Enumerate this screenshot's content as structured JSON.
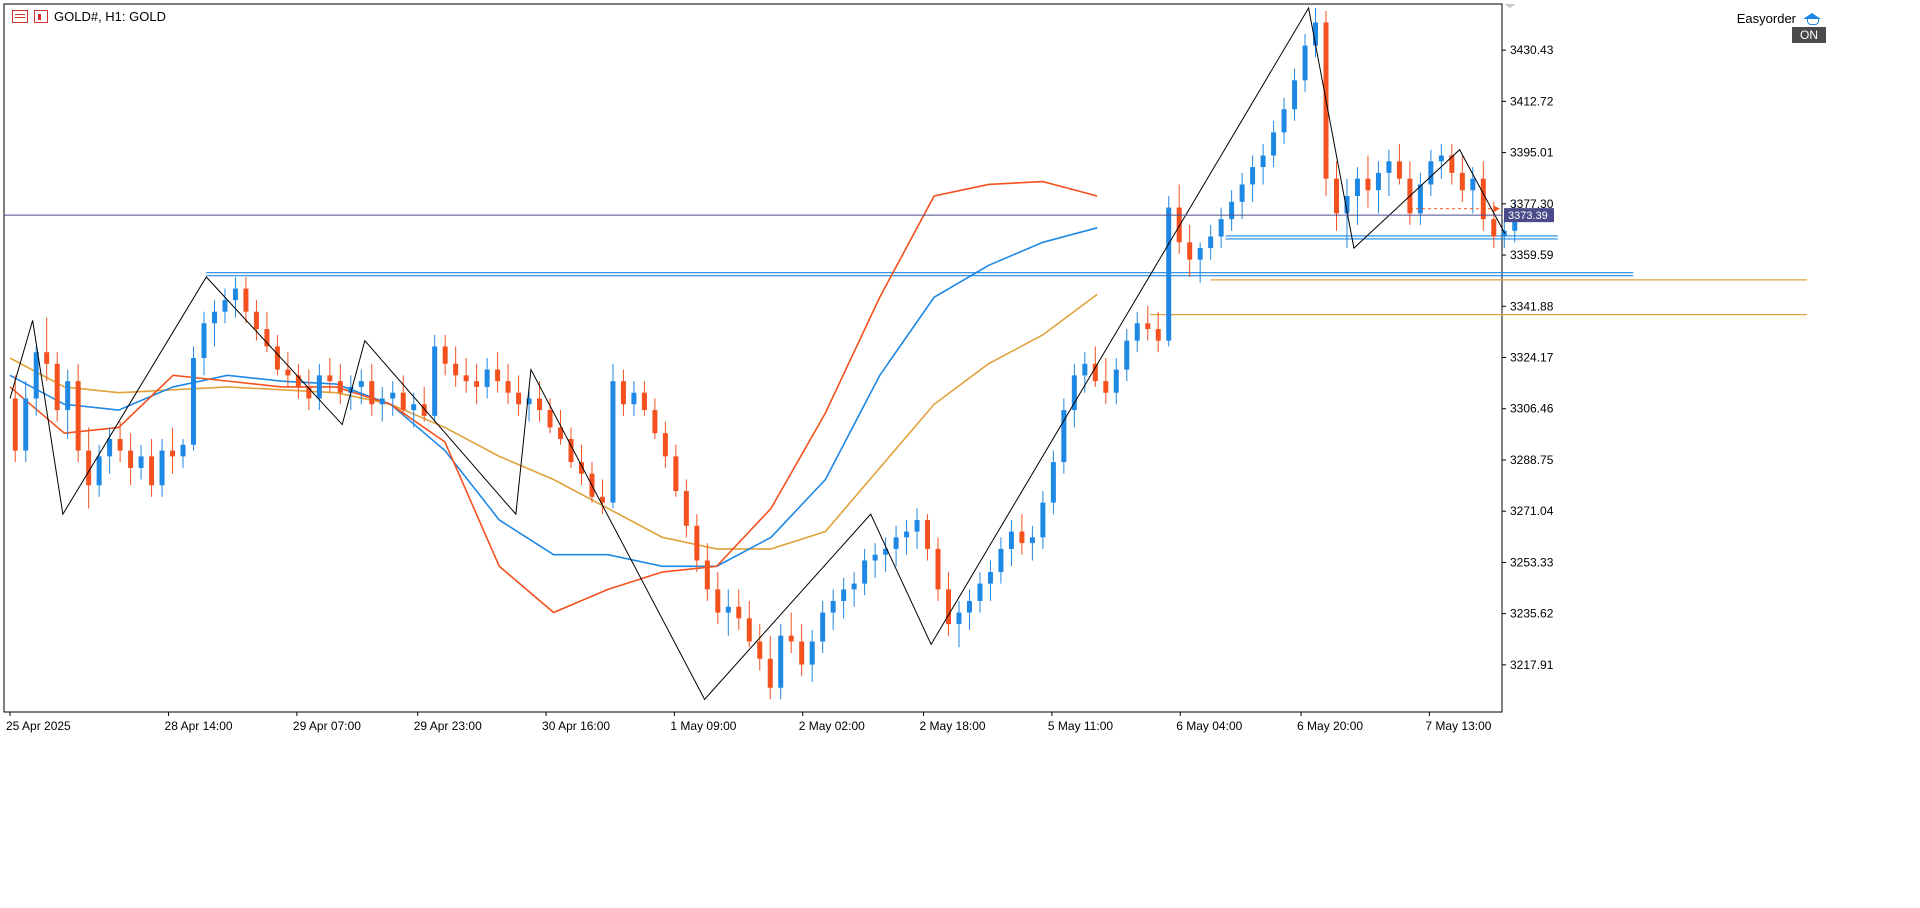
{
  "header": {
    "symbol": "GOLD#, H1:  GOLD",
    "expert_name": "Easyorder",
    "expert_status": "ON"
  },
  "chart_data": {
    "type": "candlestick",
    "symbol": "GOLD#",
    "timeframe": "H1",
    "y_axis": {
      "range": [
        3203,
        3445
      ],
      "ticks": [
        "3430.43",
        "3412.72",
        "3395.01",
        "3377.30",
        "3359.59",
        "3341.88",
        "3324.17",
        "3306.46",
        "3288.75",
        "3271.04",
        "3253.33",
        "3235.62",
        "3217.91"
      ]
    },
    "x_axis": {
      "ticks": [
        {
          "label": "25 Apr 2025",
          "bar": 0
        },
        {
          "label": "28 Apr 14:00",
          "bar": 21
        },
        {
          "label": "29 Apr 07:00",
          "bar": 38
        },
        {
          "label": "29 Apr 23:00",
          "bar": 54
        },
        {
          "label": "30 Apr 16:00",
          "bar": 71
        },
        {
          "label": "1 May 09:00",
          "bar": 88
        },
        {
          "label": "2 May 02:00",
          "bar": 105
        },
        {
          "label": "2 May 18:00",
          "bar": 121
        },
        {
          "label": "5 May 11:00",
          "bar": 138
        },
        {
          "label": "6 May 04:00",
          "bar": 155
        },
        {
          "label": "6 May 20:00",
          "bar": 171
        },
        {
          "label": "7 May 13:00",
          "bar": 188
        }
      ]
    },
    "bid": {
      "price": 3373.39,
      "label": "3373.39"
    },
    "ask_price": 3375.6,
    "colors": {
      "up": "#1e88e5",
      "down": "#f4511e",
      "ma_fast": "#f4511e",
      "ma_mid": "#1e88e5",
      "ma_slow": "#e0a23a",
      "zigzag": "#000000",
      "bid": "#4a4a8a"
    },
    "zigzag": [
      [
        0,
        3310
      ],
      [
        3,
        3337
      ],
      [
        7,
        3270
      ],
      [
        26,
        3352
      ],
      [
        44,
        3301
      ],
      [
        47,
        3330
      ],
      [
        67,
        3270
      ],
      [
        69,
        3320
      ],
      [
        92,
        3206
      ],
      [
        114,
        3270
      ],
      [
        122,
        3225
      ],
      [
        172,
        3445
      ],
      [
        178,
        3362
      ],
      [
        192,
        3396
      ],
      [
        198,
        3367
      ]
    ],
    "levels": [
      {
        "bar_start": 26,
        "bar_end": 215,
        "price": 3353.5,
        "color": "#1e88e5",
        "double": true
      },
      {
        "bar_start": 161,
        "bar_end": 205,
        "price": 3366.2,
        "color": "#1e88e5",
        "double": true
      },
      {
        "bar_start": 159,
        "bar_end": 238,
        "price": 3351.0,
        "color": "#e0a23a",
        "double": false
      },
      {
        "bar_start": 151,
        "bar_end": 238,
        "price": 3339.0,
        "color": "#e0a23a",
        "double": false
      }
    ],
    "ma_fast": [
      [
        0,
        3314
      ],
      [
        10,
        3298
      ],
      [
        20,
        3300
      ],
      [
        30,
        3318
      ],
      [
        40,
        3316
      ],
      [
        50,
        3314
      ],
      [
        60,
        3314
      ],
      [
        70,
        3308
      ],
      [
        80,
        3295
      ],
      [
        90,
        3252
      ],
      [
        100,
        3236
      ],
      [
        110,
        3244
      ],
      [
        120,
        3250
      ],
      [
        130,
        3252
      ],
      [
        140,
        3272
      ],
      [
        150,
        3305
      ],
      [
        160,
        3345
      ],
      [
        170,
        3380
      ],
      [
        180,
        3384
      ],
      [
        190,
        3385
      ],
      [
        200,
        3380
      ]
    ],
    "ma_mid": [
      [
        0,
        3318
      ],
      [
        10,
        3308
      ],
      [
        20,
        3306
      ],
      [
        30,
        3314
      ],
      [
        40,
        3318
      ],
      [
        50,
        3316
      ],
      [
        60,
        3315
      ],
      [
        70,
        3308
      ],
      [
        80,
        3292
      ],
      [
        90,
        3268
      ],
      [
        100,
        3256
      ],
      [
        110,
        3256
      ],
      [
        120,
        3252
      ],
      [
        130,
        3252
      ],
      [
        140,
        3262
      ],
      [
        150,
        3282
      ],
      [
        160,
        3318
      ],
      [
        170,
        3345
      ],
      [
        180,
        3356
      ],
      [
        190,
        3364
      ],
      [
        200,
        3369
      ]
    ],
    "ma_slow": [
      [
        0,
        3324
      ],
      [
        10,
        3314
      ],
      [
        20,
        3312
      ],
      [
        30,
        3313
      ],
      [
        40,
        3314
      ],
      [
        50,
        3313
      ],
      [
        60,
        3312
      ],
      [
        70,
        3308
      ],
      [
        80,
        3300
      ],
      [
        90,
        3290
      ],
      [
        100,
        3282
      ],
      [
        110,
        3272
      ],
      [
        120,
        3262
      ],
      [
        130,
        3258
      ],
      [
        140,
        3258
      ],
      [
        150,
        3264
      ],
      [
        160,
        3286
      ],
      [
        170,
        3308
      ],
      [
        180,
        3322
      ],
      [
        190,
        3332
      ],
      [
        200,
        3346
      ]
    ],
    "candles": [
      [
        3310,
        3318,
        3288,
        3292
      ],
      [
        3292,
        3316,
        3288,
        3310
      ],
      [
        3310,
        3328,
        3304,
        3326
      ],
      [
        3326,
        3338,
        3316,
        3322
      ],
      [
        3322,
        3326,
        3302,
        3306
      ],
      [
        3306,
        3320,
        3296,
        3316
      ],
      [
        3316,
        3322,
        3288,
        3292
      ],
      [
        3292,
        3300,
        3272,
        3280
      ],
      [
        3280,
        3294,
        3276,
        3290
      ],
      [
        3290,
        3300,
        3284,
        3296
      ],
      [
        3296,
        3302,
        3288,
        3292
      ],
      [
        3292,
        3298,
        3280,
        3286
      ],
      [
        3286,
        3294,
        3282,
        3290
      ],
      [
        3290,
        3296,
        3276,
        3280
      ],
      [
        3280,
        3296,
        3276,
        3292
      ],
      [
        3292,
        3300,
        3284,
        3290
      ],
      [
        3290,
        3296,
        3286,
        3294
      ],
      [
        3294,
        3328,
        3292,
        3324
      ],
      [
        3324,
        3340,
        3318,
        3336
      ],
      [
        3336,
        3344,
        3328,
        3340
      ],
      [
        3340,
        3348,
        3336,
        3344
      ],
      [
        3344,
        3352,
        3338,
        3348
      ],
      [
        3348,
        3352,
        3336,
        3340
      ],
      [
        3340,
        3344,
        3330,
        3334
      ],
      [
        3334,
        3340,
        3326,
        3328
      ],
      [
        3328,
        3332,
        3318,
        3320
      ],
      [
        3320,
        3326,
        3314,
        3318
      ],
      [
        3318,
        3322,
        3310,
        3314
      ],
      [
        3314,
        3320,
        3306,
        3310
      ],
      [
        3310,
        3322,
        3306,
        3318
      ],
      [
        3318,
        3324,
        3312,
        3316
      ],
      [
        3316,
        3322,
        3308,
        3312
      ],
      [
        3312,
        3318,
        3306,
        3314
      ],
      [
        3314,
        3320,
        3308,
        3316
      ],
      [
        3316,
        3322,
        3304,
        3308
      ],
      [
        3308,
        3314,
        3302,
        3310
      ],
      [
        3310,
        3316,
        3304,
        3312
      ],
      [
        3312,
        3318,
        3304,
        3306
      ],
      [
        3306,
        3312,
        3300,
        3308
      ],
      [
        3308,
        3314,
        3302,
        3304
      ],
      [
        3304,
        3332,
        3302,
        3328
      ],
      [
        3328,
        3332,
        3318,
        3322
      ],
      [
        3322,
        3328,
        3314,
        3318
      ],
      [
        3318,
        3324,
        3312,
        3316
      ],
      [
        3316,
        3322,
        3308,
        3314
      ],
      [
        3314,
        3324,
        3310,
        3320
      ],
      [
        3320,
        3326,
        3312,
        3316
      ],
      [
        3316,
        3322,
        3308,
        3312
      ],
      [
        3312,
        3318,
        3304,
        3308
      ],
      [
        3308,
        3314,
        3302,
        3310
      ],
      [
        3310,
        3316,
        3302,
        3306
      ],
      [
        3306,
        3310,
        3298,
        3300
      ],
      [
        3300,
        3306,
        3294,
        3296
      ],
      [
        3296,
        3300,
        3286,
        3288
      ],
      [
        3288,
        3294,
        3280,
        3284
      ],
      [
        3284,
        3288,
        3274,
        3276
      ],
      [
        3276,
        3282,
        3270,
        3274
      ],
      [
        3274,
        3322,
        3272,
        3316
      ],
      [
        3316,
        3320,
        3304,
        3308
      ],
      [
        3308,
        3316,
        3304,
        3312
      ],
      [
        3312,
        3316,
        3304,
        3306
      ],
      [
        3306,
        3310,
        3296,
        3298
      ],
      [
        3298,
        3302,
        3286,
        3290
      ],
      [
        3290,
        3294,
        3276,
        3278
      ],
      [
        3278,
        3282,
        3262,
        3266
      ],
      [
        3266,
        3270,
        3250,
        3254
      ],
      [
        3254,
        3260,
        3240,
        3244
      ],
      [
        3244,
        3250,
        3232,
        3236
      ],
      [
        3236,
        3244,
        3228,
        3238
      ],
      [
        3238,
        3244,
        3230,
        3234
      ],
      [
        3234,
        3240,
        3224,
        3226
      ],
      [
        3226,
        3232,
        3216,
        3220
      ],
      [
        3220,
        3228,
        3206,
        3210
      ],
      [
        3210,
        3232,
        3206,
        3228
      ],
      [
        3228,
        3236,
        3222,
        3226
      ],
      [
        3226,
        3232,
        3214,
        3218
      ],
      [
        3218,
        3230,
        3212,
        3226
      ],
      [
        3226,
        3240,
        3222,
        3236
      ],
      [
        3236,
        3244,
        3230,
        3240
      ],
      [
        3240,
        3248,
        3234,
        3244
      ],
      [
        3244,
        3250,
        3238,
        3246
      ],
      [
        3246,
        3258,
        3242,
        3254
      ],
      [
        3254,
        3260,
        3248,
        3256
      ],
      [
        3256,
        3262,
        3250,
        3258
      ],
      [
        3258,
        3266,
        3252,
        3262
      ],
      [
        3262,
        3268,
        3256,
        3264
      ],
      [
        3264,
        3272,
        3258,
        3268
      ],
      [
        3268,
        3270,
        3254,
        3258
      ],
      [
        3258,
        3262,
        3240,
        3244
      ],
      [
        3244,
        3250,
        3228,
        3232
      ],
      [
        3232,
        3240,
        3224,
        3236
      ],
      [
        3236,
        3244,
        3230,
        3240
      ],
      [
        3240,
        3250,
        3236,
        3246
      ],
      [
        3246,
        3254,
        3240,
        3250
      ],
      [
        3250,
        3262,
        3246,
        3258
      ],
      [
        3258,
        3268,
        3252,
        3264
      ],
      [
        3264,
        3270,
        3256,
        3260
      ],
      [
        3260,
        3266,
        3254,
        3262
      ],
      [
        3262,
        3278,
        3258,
        3274
      ],
      [
        3274,
        3292,
        3270,
        3288
      ],
      [
        3288,
        3310,
        3284,
        3306
      ],
      [
        3306,
        3322,
        3300,
        3318
      ],
      [
        3318,
        3326,
        3312,
        3322
      ],
      [
        3322,
        3328,
        3314,
        3316
      ],
      [
        3316,
        3324,
        3308,
        3312
      ],
      [
        3312,
        3324,
        3308,
        3320
      ],
      [
        3320,
        3334,
        3316,
        3330
      ],
      [
        3330,
        3340,
        3326,
        3336
      ],
      [
        3336,
        3342,
        3330,
        3334
      ],
      [
        3334,
        3340,
        3326,
        3330
      ],
      [
        3330,
        3380,
        3328,
        3376
      ],
      [
        3376,
        3384,
        3360,
        3364
      ],
      [
        3364,
        3370,
        3352,
        3358
      ],
      [
        3358,
        3364,
        3350,
        3362
      ],
      [
        3362,
        3370,
        3358,
        3366
      ],
      [
        3366,
        3376,
        3362,
        3372
      ],
      [
        3372,
        3382,
        3368,
        3378
      ],
      [
        3378,
        3388,
        3372,
        3384
      ],
      [
        3384,
        3394,
        3378,
        3390
      ],
      [
        3390,
        3398,
        3384,
        3394
      ],
      [
        3394,
        3406,
        3390,
        3402
      ],
      [
        3402,
        3414,
        3398,
        3410
      ],
      [
        3410,
        3424,
        3406,
        3420
      ],
      [
        3420,
        3436,
        3416,
        3432
      ],
      [
        3432,
        3445,
        3428,
        3440
      ],
      [
        3440,
        3444,
        3380,
        3386
      ],
      [
        3386,
        3392,
        3368,
        3374
      ],
      [
        3374,
        3386,
        3362,
        3380
      ],
      [
        3380,
        3390,
        3370,
        3386
      ],
      [
        3386,
        3394,
        3376,
        3382
      ],
      [
        3382,
        3392,
        3374,
        3388
      ],
      [
        3388,
        3396,
        3380,
        3392
      ],
      [
        3392,
        3398,
        3384,
        3386
      ],
      [
        3386,
        3392,
        3370,
        3374
      ],
      [
        3374,
        3388,
        3370,
        3384
      ],
      [
        3384,
        3396,
        3380,
        3392
      ],
      [
        3392,
        3398,
        3386,
        3394
      ],
      [
        3394,
        3398,
        3384,
        3388
      ],
      [
        3388,
        3394,
        3378,
        3382
      ],
      [
        3382,
        3390,
        3374,
        3386
      ],
      [
        3386,
        3392,
        3368,
        3372
      ],
      [
        3372,
        3378,
        3362,
        3366
      ],
      [
        3366,
        3372,
        3362,
        3368
      ],
      [
        3368,
        3378,
        3364,
        3374
      ]
    ],
    "candle_bar_start": 0,
    "candle_bar_step": 1.4
  }
}
